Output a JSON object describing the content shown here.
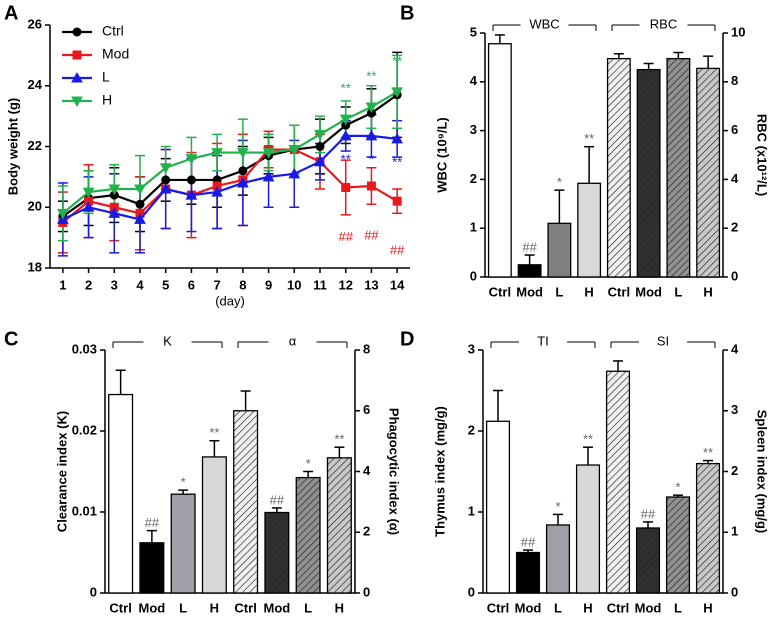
{
  "chart_data": [
    {
      "type": "line",
      "panel": "A",
      "xlabel": "(day)",
      "ylabel": "Body weight (g)",
      "x": [
        1,
        2,
        3,
        4,
        5,
        6,
        7,
        8,
        9,
        10,
        11,
        12,
        13,
        14
      ],
      "xlim": [
        0.5,
        14.5
      ],
      "xticks": [
        1,
        2,
        3,
        4,
        5,
        6,
        7,
        8,
        9,
        10,
        11,
        12,
        13,
        14
      ],
      "ylim": [
        18,
        26
      ],
      "yticks": [
        18,
        20,
        22,
        24,
        26
      ],
      "legend": "upper left",
      "series": [
        {
          "name": "Ctrl",
          "color": "#000000",
          "marker": "circle",
          "values": [
            19.7,
            20.3,
            20.4,
            20.1,
            20.9,
            20.9,
            20.9,
            21.2,
            21.7,
            21.9,
            22.0,
            22.7,
            23.1,
            23.7
          ],
          "errors": [
            0.5,
            0.9,
            0.9,
            0.9,
            0.7,
            0.8,
            0.9,
            0.8,
            0.6,
            0.8,
            0.9,
            0.6,
            0.8,
            1.4
          ],
          "labels": [
            null,
            null,
            null,
            null,
            null,
            null,
            null,
            null,
            null,
            null,
            null,
            null,
            null,
            null
          ]
        },
        {
          "name": "Mod",
          "color": "#e8191c",
          "marker": "square",
          "values": [
            19.5,
            20.2,
            20.0,
            19.8,
            20.6,
            20.4,
            20.7,
            20.9,
            21.9,
            21.9,
            21.5,
            20.65,
            20.7,
            20.2
          ],
          "errors": [
            1.0,
            1.2,
            1.1,
            1.2,
            1.3,
            1.4,
            1.4,
            1.5,
            0.6,
            0.8,
            0.9,
            0.9,
            0.6,
            0.4
          ],
          "labels": [
            null,
            null,
            null,
            null,
            null,
            null,
            null,
            null,
            null,
            null,
            null,
            "##",
            "##",
            "##"
          ]
        },
        {
          "name": "L",
          "color": "#1a1ae6",
          "marker": "triangle-up",
          "values": [
            19.6,
            20.0,
            19.8,
            19.6,
            20.6,
            20.4,
            20.5,
            20.8,
            21.0,
            21.1,
            21.5,
            22.35,
            22.35,
            22.25
          ],
          "errors": [
            1.2,
            1.0,
            1.3,
            1.1,
            1.3,
            1.2,
            1.2,
            1.4,
            1.0,
            1.1,
            0.6,
            0.5,
            0.7,
            0.6
          ],
          "labels": [
            null,
            null,
            null,
            null,
            null,
            null,
            null,
            null,
            null,
            null,
            null,
            "**",
            "*",
            "**"
          ]
        },
        {
          "name": "H",
          "color": "#22b24c",
          "marker": "triangle-down",
          "values": [
            19.8,
            20.5,
            20.6,
            20.6,
            21.3,
            21.6,
            21.8,
            21.8,
            21.8,
            21.9,
            22.4,
            22.9,
            23.3,
            23.8
          ],
          "errors": [
            0.9,
            0.7,
            0.8,
            1.1,
            0.7,
            0.7,
            0.6,
            1.1,
            0.6,
            0.8,
            0.6,
            0.6,
            0.7,
            1.2
          ],
          "labels": [
            null,
            null,
            null,
            null,
            null,
            null,
            null,
            null,
            null,
            null,
            null,
            "**",
            "**",
            "**"
          ]
        }
      ]
    },
    {
      "type": "bar",
      "panel": "B",
      "ylabel": "WBC (10⁹/L)",
      "y2label": "RBC (x10¹²/L)",
      "categories": [
        "Ctrl",
        "Mod",
        "L",
        "H"
      ],
      "ylim": [
        0,
        5
      ],
      "yticks": [
        0,
        1,
        2,
        3,
        4,
        5
      ],
      "y2lim": [
        0,
        10
      ],
      "y2ticks": [
        0,
        2,
        4,
        6,
        8,
        10
      ],
      "series": [
        {
          "name": "WBC",
          "colors": [
            "#ffffff",
            "#000000",
            "#808080",
            "#d9d9d9"
          ],
          "hatch": false,
          "values": [
            4.78,
            0.25,
            1.1,
            1.92
          ],
          "errors": [
            0.18,
            0.2,
            0.68,
            0.75
          ],
          "labels": [
            null,
            "##",
            "*",
            "**"
          ]
        },
        {
          "name": "RBC",
          "axis": "y2",
          "colors": [
            "#f0f0f0",
            "#303030",
            "#909090",
            "#c8c8c8"
          ],
          "hatch": true,
          "values": [
            8.95,
            8.5,
            8.95,
            8.55
          ],
          "errors": [
            0.2,
            0.25,
            0.25,
            0.5
          ],
          "labels": [
            null,
            null,
            null,
            null
          ]
        }
      ]
    },
    {
      "type": "bar",
      "panel": "C",
      "ylabel": "Clearance index (K)",
      "y2label": "Phagocytic index (α)",
      "categories": [
        "Ctrl",
        "Mod",
        "L",
        "H"
      ],
      "ylim": [
        0,
        0.03
      ],
      "yticks": [
        0,
        0.01,
        0.02,
        0.03
      ],
      "y2lim": [
        0,
        8
      ],
      "y2ticks": [
        0,
        2,
        4,
        6,
        8
      ],
      "series": [
        {
          "name": "K",
          "colors": [
            "#ffffff",
            "#000000",
            "#a0a0a8",
            "#d8d8d8"
          ],
          "hatch": false,
          "values": [
            0.0245,
            0.0062,
            0.0122,
            0.0168
          ],
          "errors": [
            0.003,
            0.0015,
            0.0005,
            0.002
          ],
          "labels": [
            null,
            "##",
            "*",
            "**"
          ]
        },
        {
          "name": "α",
          "axis": "y2",
          "colors": [
            "#f0f0f0",
            "#303030",
            "#909090",
            "#c8c8c8"
          ],
          "hatch": true,
          "values": [
            6.0,
            2.65,
            3.8,
            4.45
          ],
          "errors": [
            0.65,
            0.15,
            0.2,
            0.35
          ],
          "labels": [
            null,
            "##",
            "*",
            "**"
          ]
        }
      ]
    },
    {
      "type": "bar",
      "panel": "D",
      "ylabel": "Thymus index (mg/g)",
      "y2label": "Spleen index (mg/g)",
      "categories": [
        "Ctrl",
        "Mod",
        "L",
        "H"
      ],
      "ylim": [
        0,
        3
      ],
      "yticks": [
        0,
        1,
        2,
        3
      ],
      "y2lim": [
        0,
        4
      ],
      "y2ticks": [
        0,
        1,
        2,
        3,
        4
      ],
      "series": [
        {
          "name": "TI",
          "colors": [
            "#ffffff",
            "#000000",
            "#a0a0a8",
            "#d8d8d8"
          ],
          "hatch": false,
          "values": [
            2.12,
            0.5,
            0.84,
            1.58
          ],
          "errors": [
            0.38,
            0.03,
            0.13,
            0.22
          ],
          "labels": [
            null,
            "##",
            "*",
            "**"
          ]
        },
        {
          "name": "SI",
          "axis": "y2",
          "colors": [
            "#f0f0f0",
            "#303030",
            "#909090",
            "#c8c8c8"
          ],
          "hatch": true,
          "values": [
            3.65,
            1.07,
            1.58,
            2.13
          ],
          "errors": [
            0.17,
            0.1,
            0.03,
            0.05
          ],
          "labels": [
            null,
            "##",
            "*",
            "**"
          ]
        }
      ]
    }
  ]
}
